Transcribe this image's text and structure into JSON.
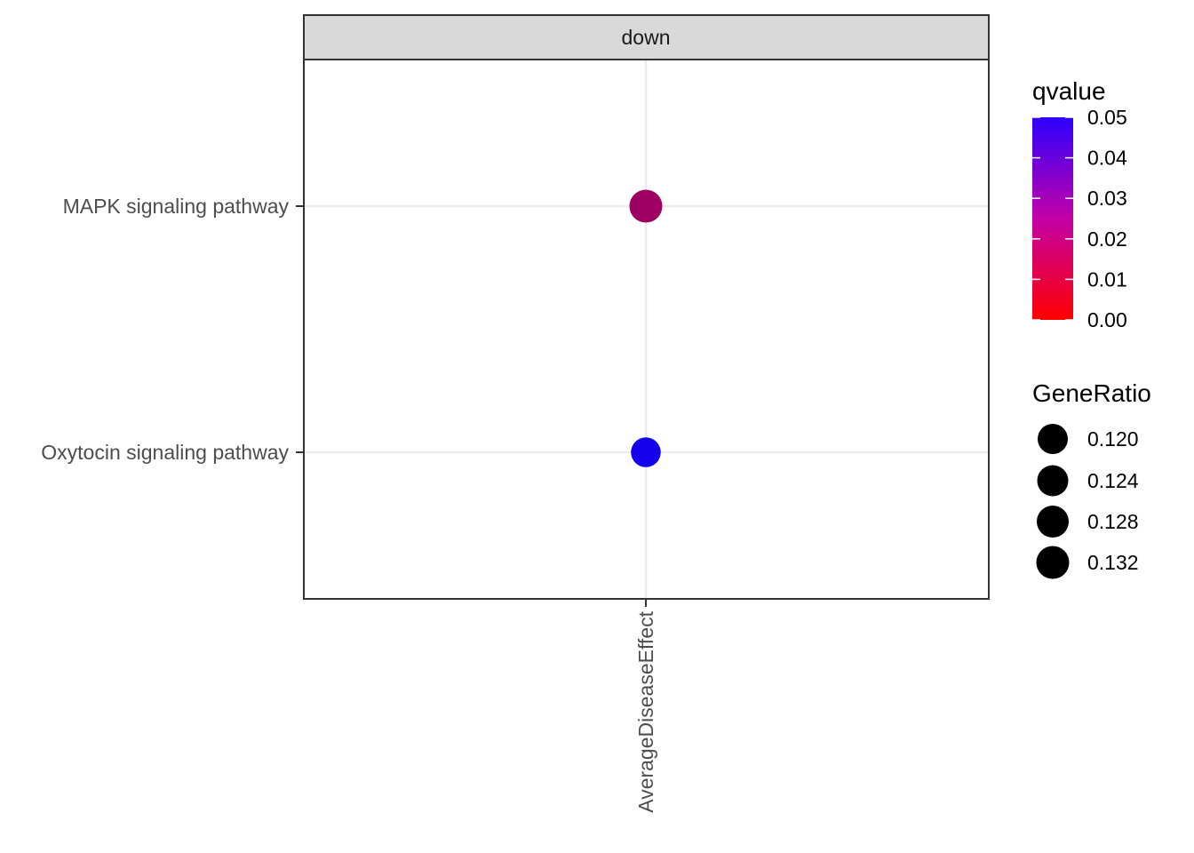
{
  "chart_data": {
    "type": "scatter",
    "facet_label": "down",
    "x_categories": [
      "AverageDiseaseEffect"
    ],
    "y_categories": [
      "MAPK signaling pathway",
      "Oxytocin signaling pathway"
    ],
    "points": [
      {
        "x": "AverageDiseaseEffect",
        "y": "MAPK signaling pathway",
        "qvalue": 0.019,
        "GeneRatio": 0.132
      },
      {
        "x": "AverageDiseaseEffect",
        "y": "Oxytocin signaling pathway",
        "qvalue": 0.046,
        "GeneRatio": 0.118
      }
    ],
    "grid": true,
    "legend_position": "right",
    "legends": {
      "color": {
        "title": "qvalue",
        "breaks": [
          "0.05",
          "0.04",
          "0.03",
          "0.02",
          "0.01",
          "0.00"
        ],
        "range": [
          0,
          0.05
        ],
        "low_color": "#ff0000",
        "high_color": "#0000ff"
      },
      "size": {
        "title": "GeneRatio",
        "breaks": [
          "0.120",
          "0.124",
          "0.128",
          "0.132"
        ],
        "key_color": "#000000"
      }
    }
  }
}
